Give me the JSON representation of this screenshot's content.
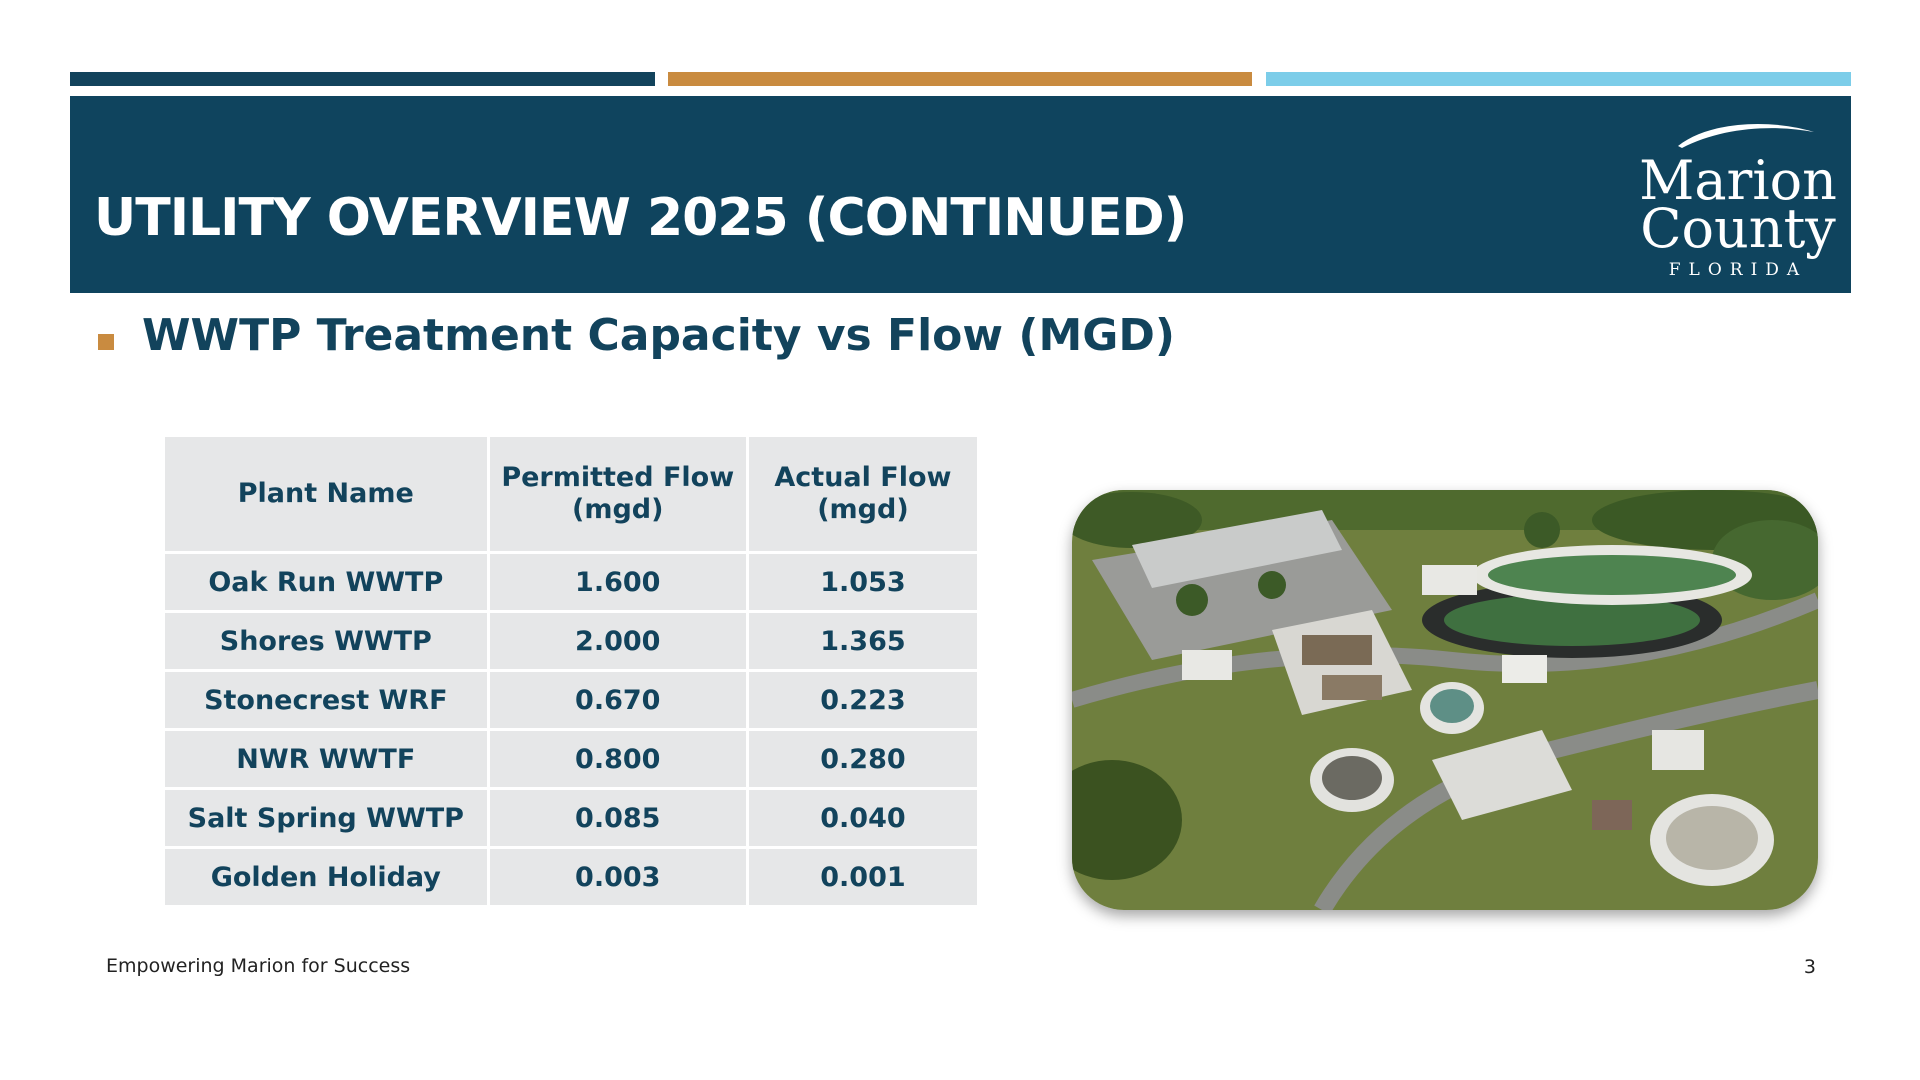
{
  "slide": {
    "title": "UTILITY OVERVIEW 2025 (CONTINUED)",
    "subtitle": "WWTP Treatment Capacity vs Flow (MGD)",
    "footer": "Empowering Marion for Success",
    "page_number": "3"
  },
  "logo": {
    "line1": "Marion",
    "line2": "County",
    "line3": "FLORIDA"
  },
  "colors": {
    "navy": "#0f445e",
    "gold": "#c98b40",
    "light_blue": "#7ccde9",
    "table_fill": "#e6e7e8"
  },
  "table": {
    "headers": [
      "Plant Name",
      "Permitted Flow (mgd)",
      "Actual Flow (mgd)"
    ],
    "rows": [
      [
        "Oak Run WWTP",
        "1.600",
        "1.053"
      ],
      [
        "Shores WWTP",
        "2.000",
        "1.365"
      ],
      [
        "Stonecrest WRF",
        "0.670",
        "0.223"
      ],
      [
        "NWR WWTF",
        "0.800",
        "0.280"
      ],
      [
        "Salt Spring WWTP",
        "0.085",
        "0.040"
      ],
      [
        "Golden Holiday",
        "0.003",
        "0.001"
      ]
    ]
  }
}
